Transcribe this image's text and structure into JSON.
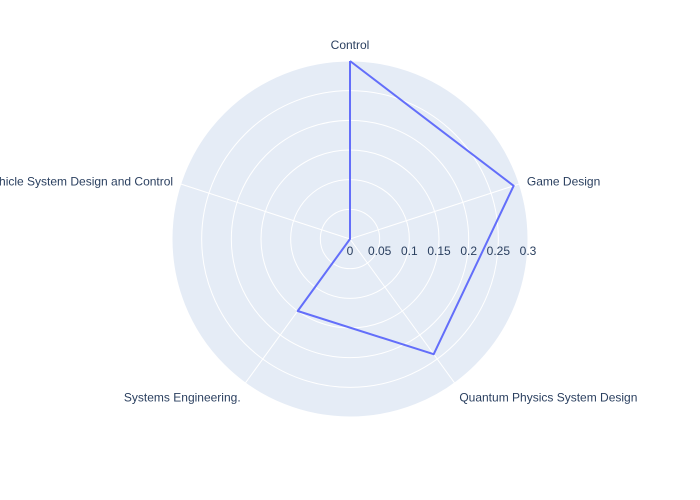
{
  "chart_data": {
    "type": "radar",
    "categories": [
      "Control",
      "Game Design",
      "Quantum Physics System Design",
      "Systems Engineering.",
      "Vehicle System Design and Control"
    ],
    "values": [
      0.3,
      0.29,
      0.24,
      0.15,
      0.0
    ],
    "radial_ticks": [
      "0",
      "0.05",
      "0.1",
      "0.15",
      "0.2",
      "0.25",
      "0.3"
    ],
    "rlim": [
      0,
      0.3
    ],
    "grid": true,
    "legend": "none",
    "colors": {
      "line": "#636efa",
      "polar_bg": "#e5ecf6",
      "grid": "#ffffff",
      "text": "#2a3f5f"
    }
  }
}
